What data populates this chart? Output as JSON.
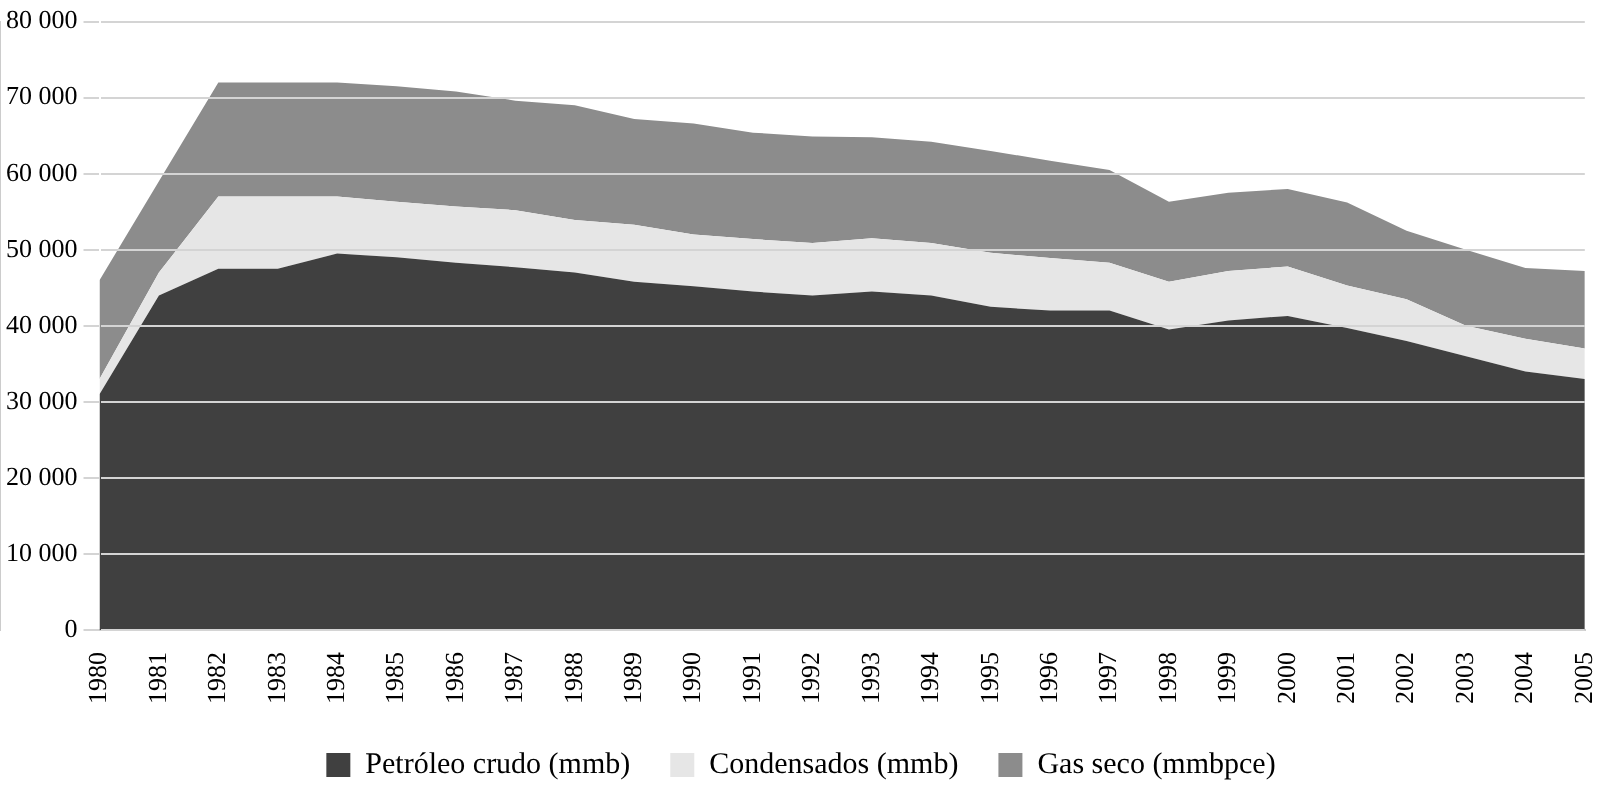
{
  "chart_data": {
    "type": "area",
    "stacked": true,
    "categories": [
      "1980",
      "1981",
      "1982",
      "1983",
      "1984",
      "1985",
      "1986",
      "1987",
      "1988",
      "1989",
      "1990",
      "1991",
      "1992",
      "1993",
      "1994",
      "1995",
      "1996",
      "1997",
      "1998",
      "1999",
      "2000",
      "2001",
      "2002",
      "2003",
      "2004",
      "2005"
    ],
    "series": [
      {
        "name": "Petróleo crudo (mmb)",
        "color": "#404040",
        "values": [
          31000,
          44000,
          47500,
          47500,
          49500,
          49000,
          48300,
          47700,
          47000,
          45800,
          45200,
          44500,
          44000,
          44500,
          44000,
          42500,
          42000,
          42000,
          39500,
          40700,
          41300,
          39700,
          38000,
          36000,
          34000,
          33000
        ]
      },
      {
        "name": "Condensados (mmb)",
        "color": "#e6e6e6",
        "values": [
          2000,
          3000,
          9500,
          9500,
          7500,
          7300,
          7400,
          7500,
          6900,
          7500,
          6800,
          6900,
          6900,
          7000,
          6900,
          7100,
          6900,
          6300,
          6300,
          6500,
          6500,
          5600,
          5500,
          4000,
          4300,
          4000
        ]
      },
      {
        "name": "Gas seco (mmbpce)",
        "color": "#8c8c8c",
        "values": [
          13000,
          12000,
          15000,
          15000,
          15000,
          15200,
          15100,
          14400,
          15100,
          13900,
          14600,
          14000,
          14000,
          13300,
          13300,
          13400,
          12800,
          12200,
          10500,
          10300,
          10200,
          10900,
          9000,
          10000,
          9300,
          10200
        ]
      }
    ],
    "ylim": [
      0,
      80000
    ],
    "yticks": [
      0,
      {
        "value": 10000,
        "label": "10 000"
      },
      {
        "value": 20000,
        "label": "20 000"
      },
      {
        "value": 30000,
        "label": "30 000"
      },
      {
        "value": 40000,
        "label": "40 000"
      },
      {
        "value": 50000,
        "label": "50 000"
      },
      {
        "value": 60000,
        "label": "60 000"
      },
      {
        "value": 70000,
        "label": "70 000"
      },
      {
        "value": 80000,
        "label": "80 000"
      }
    ],
    "grid": "y",
    "legend": "bottom"
  }
}
